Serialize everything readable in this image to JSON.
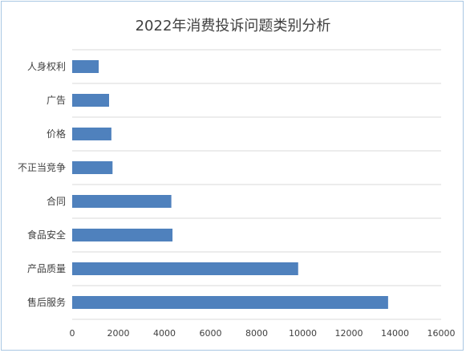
{
  "chart_data": {
    "type": "bar",
    "orientation": "horizontal",
    "title": "2022年消费投诉问题类别分析",
    "categories": [
      "人身权利",
      "广告",
      "价格",
      "不正当竞争",
      "合同",
      "食品安全",
      "产品质量",
      "售后服务"
    ],
    "values": [
      1150,
      1600,
      1700,
      1750,
      4300,
      4350,
      9800,
      13700
    ],
    "xlim": [
      0,
      16000
    ],
    "xticks": [
      0,
      2000,
      4000,
      6000,
      8000,
      10000,
      12000,
      14000,
      16000
    ],
    "xlabel": "",
    "ylabel": "",
    "grid": "horizontal",
    "bar_color": "#4f81bd"
  }
}
